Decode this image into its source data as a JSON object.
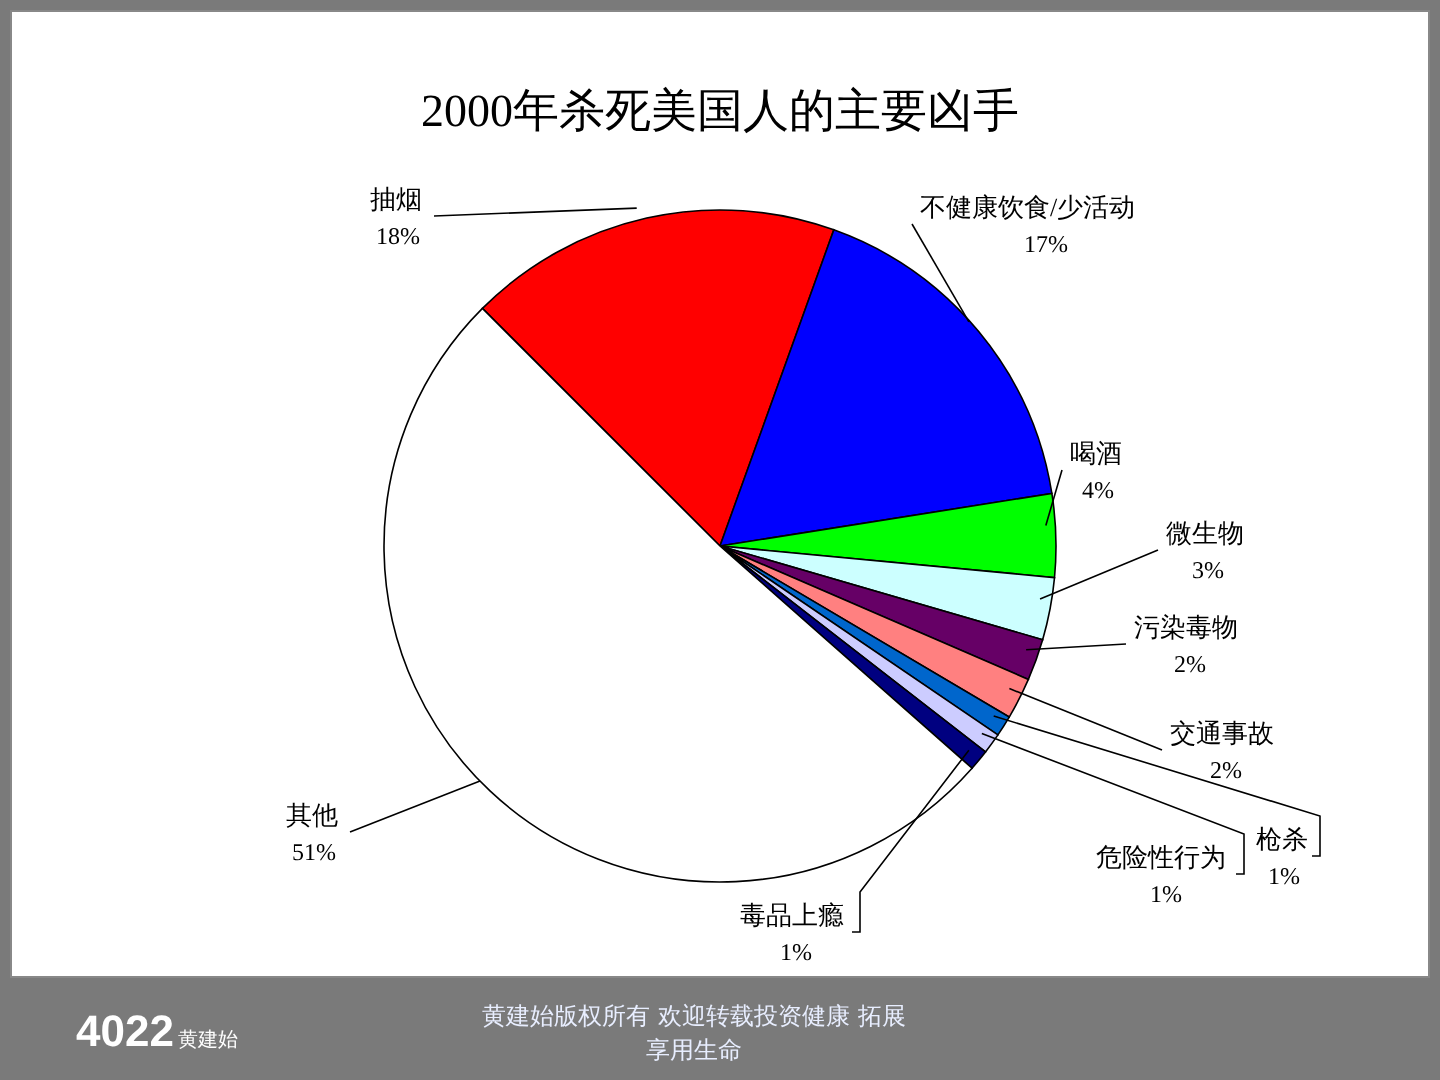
{
  "chart_data": {
    "type": "pie",
    "title": "2000年杀死美国人的主要凶手",
    "categories": [
      "抽烟",
      "不健康饮食/少活动",
      "喝酒",
      "微生物",
      "污染毒物",
      "交通事故",
      "枪杀",
      "危险性行为",
      "毒品上瘾",
      "其他"
    ],
    "values": [
      18,
      17,
      4,
      3,
      2,
      2,
      1,
      1,
      1,
      51
    ],
    "value_labels": [
      "18%",
      "17%",
      "4%",
      "3%",
      "2%",
      "2%",
      "1%",
      "1%",
      "1%",
      "51%"
    ],
    "colors": [
      "#ff0000",
      "#0000ff",
      "#00ff00",
      "#ccffff",
      "#660066",
      "#ff8080",
      "#0066cc",
      "#ccccff",
      "#000080",
      "#ffffff"
    ],
    "annotations": [
      "4022",
      "黄建始",
      "黄建始版权所有 欢迎转载投资健康 拓展享用生命"
    ]
  }
}
